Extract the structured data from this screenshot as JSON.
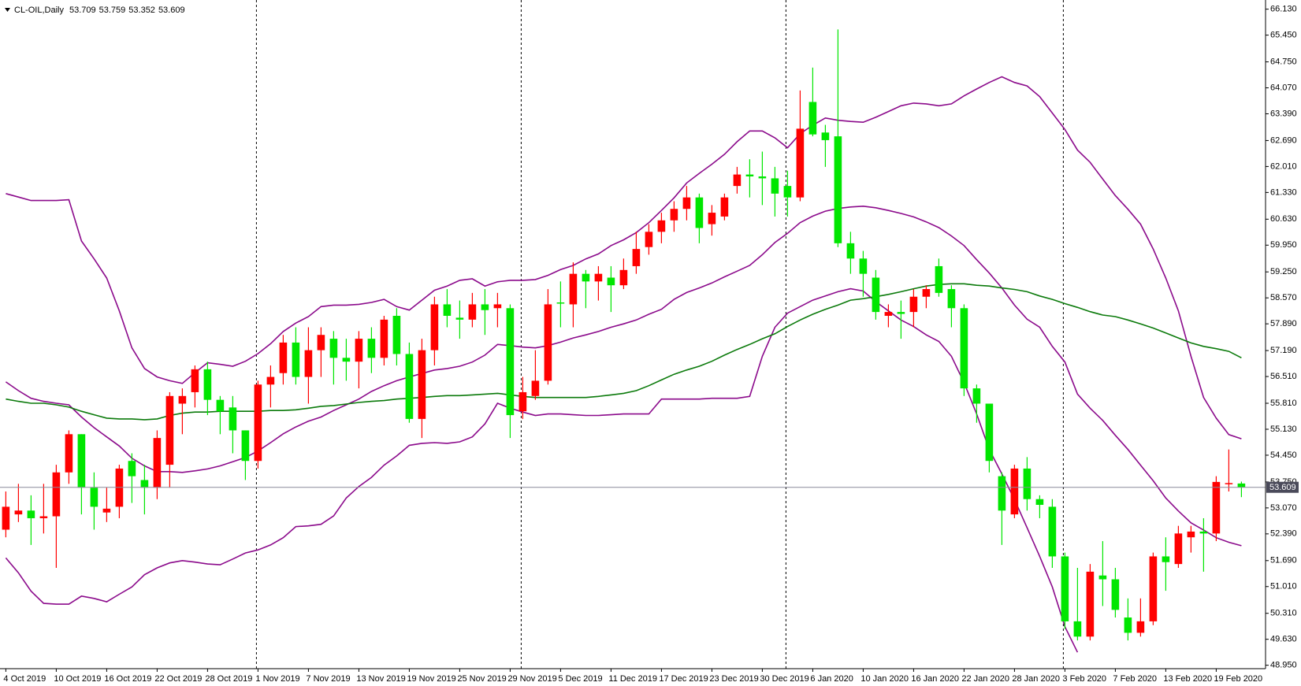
{
  "chart_data": {
    "type": "candlestick",
    "title": "CL-OIL,Daily",
    "categories": [
      "4 Oct 2019",
      null,
      null,
      null,
      "10 Oct 2019",
      null,
      null,
      null,
      "16 Oct 2019",
      null,
      null,
      null,
      "22 Oct 2019",
      null,
      null,
      null,
      "28 Oct 2019",
      null,
      null,
      null,
      "1 Nov 2019",
      null,
      null,
      null,
      "7 Nov 2019",
      null,
      null,
      null,
      "13 Nov 2019",
      null,
      null,
      null,
      "19 Nov 2019",
      null,
      null,
      null,
      "25 Nov 2019",
      null,
      null,
      null,
      "29 Nov 2019",
      null,
      null,
      null,
      "5 Dec 2019",
      null,
      null,
      null,
      "11 Dec 2019",
      null,
      null,
      null,
      "17 Dec 2019",
      null,
      null,
      null,
      "23 Dec 2019",
      null,
      null,
      null,
      "30 Dec 2019",
      null,
      null,
      null,
      "6 Jan 2020",
      null,
      null,
      null,
      "10 Jan 2020",
      null,
      null,
      null,
      "16 Jan 2020",
      null,
      null,
      null,
      "22 Jan 2020",
      null,
      null,
      null,
      "28 Jan 2020",
      null,
      null,
      null,
      "3 Feb 2020",
      null,
      null,
      null,
      "7 Feb 2020",
      null,
      null,
      null,
      "13 Feb 2020",
      null,
      null,
      null,
      "19 Feb 2020",
      null,
      null
    ],
    "open": [
      52.5,
      52.9,
      53.0,
      52.8,
      52.85,
      54.0,
      55.0,
      53.6,
      52.95,
      53.1,
      54.3,
      53.8,
      53.6,
      54.2,
      55.8,
      56.1,
      56.7,
      55.9,
      55.7,
      55.1,
      54.3,
      56.3,
      56.6,
      57.4,
      56.5,
      57.2,
      57.5,
      57.0,
      56.9,
      57.5,
      57.0,
      58.1,
      57.1,
      55.4,
      57.2,
      58.4,
      58.05,
      58.0,
      58.4,
      58.3,
      58.3,
      55.6,
      56.0,
      56.4,
      58.45,
      58.4,
      59.2,
      59.0,
      59.1,
      58.9,
      59.4,
      59.9,
      60.3,
      60.6,
      60.9,
      61.2,
      60.5,
      60.7,
      61.5,
      61.8,
      61.75,
      61.7,
      61.5,
      61.2,
      63.7,
      62.9,
      62.8,
      60.0,
      59.6,
      59.1,
      58.1,
      58.2,
      58.2,
      58.6,
      59.4,
      58.8,
      58.3,
      56.2,
      55.8,
      53.9,
      52.9,
      54.1,
      53.3,
      53.1,
      51.8,
      50.1,
      49.7,
      51.3,
      51.2,
      50.2,
      49.8,
      50.1,
      51.8,
      51.6,
      52.3,
      52.45,
      52.4,
      53.7,
      53.709
    ],
    "high": [
      53.5,
      53.7,
      53.4,
      53.7,
      54.2,
      55.1,
      55.0,
      54.0,
      53.6,
      54.2,
      54.5,
      54.2,
      55.1,
      56.1,
      56.2,
      56.8,
      56.9,
      56.0,
      56.0,
      55.1,
      56.4,
      56.8,
      57.6,
      57.8,
      57.8,
      57.8,
      57.7,
      57.5,
      57.7,
      57.8,
      58.1,
      58.3,
      57.4,
      57.5,
      58.6,
      58.8,
      58.5,
      58.7,
      58.8,
      58.7,
      58.4,
      56.5,
      57.2,
      58.8,
      59.0,
      59.5,
      59.3,
      59.4,
      59.4,
      59.6,
      60.3,
      60.5,
      60.8,
      61.1,
      61.5,
      61.3,
      61.0,
      61.3,
      62.0,
      62.2,
      62.4,
      62.0,
      61.9,
      64.0,
      64.6,
      63.1,
      65.6,
      60.3,
      59.8,
      59.3,
      58.4,
      58.5,
      58.8,
      58.9,
      59.6,
      58.9,
      58.4,
      56.3,
      55.8,
      54.0,
      54.2,
      54.4,
      53.4,
      53.3,
      51.9,
      51.5,
      51.6,
      52.2,
      51.5,
      50.7,
      50.7,
      51.9,
      52.3,
      52.6,
      52.6,
      52.8,
      53.9,
      54.6,
      53.759
    ],
    "low": [
      52.3,
      52.7,
      52.1,
      52.4,
      51.5,
      53.7,
      52.9,
      52.5,
      52.7,
      52.8,
      53.2,
      52.9,
      53.3,
      53.6,
      55.0,
      55.7,
      55.5,
      55.0,
      54.5,
      53.8,
      54.1,
      55.7,
      56.3,
      56.3,
      55.8,
      56.5,
      56.3,
      56.4,
      56.2,
      56.6,
      56.8,
      56.8,
      55.3,
      54.9,
      56.8,
      57.8,
      57.5,
      57.8,
      57.6,
      57.8,
      54.9,
      55.4,
      55.9,
      56.3,
      57.8,
      57.8,
      58.3,
      58.5,
      58.2,
      58.8,
      59.2,
      59.7,
      60.0,
      60.3,
      60.6,
      60.0,
      60.2,
      60.6,
      61.3,
      61.2,
      61.0,
      60.7,
      60.7,
      61.1,
      62.8,
      62.0,
      59.9,
      59.2,
      58.6,
      58.0,
      57.8,
      57.5,
      57.8,
      58.3,
      58.6,
      57.8,
      56.0,
      55.3,
      54.0,
      52.1,
      52.8,
      53.0,
      52.8,
      51.5,
      49.9,
      49.6,
      49.6,
      50.5,
      50.2,
      49.6,
      49.7,
      50.0,
      50.9,
      51.5,
      51.9,
      51.4,
      52.2,
      53.5,
      53.352
    ],
    "close": [
      53.1,
      53.0,
      52.8,
      52.85,
      54.0,
      55.0,
      53.6,
      53.1,
      53.05,
      54.1,
      53.9,
      53.6,
      54.9,
      56.0,
      56.0,
      56.7,
      55.9,
      55.6,
      55.1,
      54.3,
      56.3,
      56.5,
      57.4,
      56.5,
      57.2,
      57.6,
      57.0,
      56.9,
      57.5,
      57.0,
      58.0,
      57.1,
      55.4,
      57.2,
      58.4,
      58.1,
      58.0,
      58.4,
      58.25,
      58.4,
      55.5,
      56.1,
      56.4,
      58.4,
      58.43,
      59.2,
      59.0,
      59.2,
      58.9,
      59.3,
      59.85,
      60.3,
      60.6,
      60.9,
      61.2,
      60.4,
      60.8,
      61.2,
      61.8,
      61.75,
      61.7,
      61.3,
      61.2,
      63.0,
      62.85,
      62.7,
      60.0,
      59.6,
      59.2,
      58.2,
      58.2,
      58.15,
      58.6,
      58.8,
      58.7,
      58.3,
      56.2,
      55.8,
      54.3,
      53.0,
      54.1,
      53.3,
      53.15,
      51.8,
      50.1,
      49.7,
      51.4,
      51.2,
      50.4,
      49.8,
      50.1,
      51.8,
      51.65,
      52.4,
      52.45,
      52.4,
      53.75,
      53.72,
      53.609
    ],
    "up_color": "#ff0000",
    "down_color": "#00e600",
    "lines": [
      {
        "color": "#8b0a8b",
        "values": [
          61.3,
          61.21,
          61.12,
          61.12,
          61.12,
          61.14,
          60.06,
          59.59,
          59.09,
          58.23,
          57.26,
          56.72,
          56.5,
          56.4,
          56.33,
          56.61,
          56.87,
          56.83,
          56.78,
          56.91,
          57.11,
          57.37,
          57.69,
          57.91,
          58.08,
          58.34,
          58.38,
          58.38,
          58.4,
          58.45,
          58.53,
          58.34,
          58.25,
          58.51,
          58.77,
          58.88,
          59.03,
          59.07,
          58.88,
          58.99,
          59.03,
          59.03,
          59.05,
          59.16,
          59.31,
          59.42,
          59.59,
          59.72,
          59.94,
          60.09,
          60.28,
          60.54,
          60.86,
          61.19,
          61.58,
          61.83,
          62.07,
          62.33,
          62.66,
          62.94,
          62.94,
          62.76,
          62.5,
          62.87,
          63.09,
          63.28,
          63.22,
          63.19,
          63.17,
          63.3,
          63.45,
          63.6,
          63.67,
          63.65,
          63.6,
          63.65,
          63.86,
          64.04,
          64.21,
          64.36,
          64.21,
          64.12,
          63.84,
          63.41,
          62.98,
          62.44,
          62.12,
          61.68,
          61.25,
          60.89,
          60.5,
          59.85,
          59.09,
          58.23,
          57.04,
          55.96,
          55.42,
          54.99,
          54.88
        ]
      },
      {
        "color": "#8b0a8b",
        "values": [
          56.37,
          56.14,
          55.94,
          55.86,
          55.81,
          55.77,
          55.45,
          55.17,
          54.93,
          54.69,
          54.37,
          54.17,
          54.02,
          54.02,
          54.0,
          54.04,
          54.09,
          54.17,
          54.28,
          54.39,
          54.56,
          54.78,
          55.01,
          55.19,
          55.34,
          55.45,
          55.62,
          55.77,
          55.92,
          56.12,
          56.27,
          56.4,
          56.5,
          56.59,
          56.68,
          56.72,
          56.78,
          56.89,
          57.07,
          57.35,
          57.32,
          57.28,
          57.26,
          57.32,
          57.41,
          57.52,
          57.6,
          57.69,
          57.8,
          57.89,
          57.99,
          58.14,
          58.27,
          58.53,
          58.71,
          58.83,
          58.96,
          59.12,
          59.27,
          59.42,
          59.7,
          60.02,
          60.26,
          60.54,
          60.71,
          60.84,
          60.91,
          60.95,
          60.97,
          60.93,
          60.86,
          60.78,
          60.69,
          60.56,
          60.41,
          60.19,
          59.94,
          59.57,
          59.22,
          58.83,
          58.38,
          58.01,
          57.8,
          57.3,
          56.89,
          56.05,
          55.68,
          55.36,
          54.97,
          54.6,
          54.19,
          53.78,
          53.33,
          52.99,
          52.68,
          52.49,
          52.29,
          52.17,
          52.08
        ]
      },
      {
        "color": "#8b0a8b",
        "values": [
          51.76,
          51.37,
          50.89,
          50.57,
          50.55,
          50.55,
          50.76,
          50.7,
          50.61,
          50.81,
          51.0,
          51.32,
          51.5,
          51.63,
          51.69,
          51.65,
          51.6,
          51.58,
          51.73,
          51.89,
          51.97,
          52.1,
          52.29,
          52.58,
          52.6,
          52.64,
          52.86,
          53.33,
          53.63,
          53.87,
          54.19,
          54.43,
          54.71,
          54.76,
          54.78,
          54.76,
          54.8,
          54.93,
          55.27,
          55.81,
          55.68,
          55.58,
          55.49,
          55.53,
          55.53,
          55.51,
          55.49,
          55.49,
          55.51,
          55.53,
          55.53,
          55.53,
          55.92,
          55.92,
          55.92,
          55.92,
          55.94,
          55.94,
          55.94,
          55.99,
          57.04,
          57.8,
          58.17,
          58.34,
          58.51,
          58.62,
          58.73,
          58.81,
          58.75,
          58.47,
          58.23,
          57.99,
          57.82,
          57.6,
          57.43,
          57.04,
          56.35,
          55.53,
          54.6,
          53.96,
          53.29,
          52.55,
          51.8,
          51.0,
          49.96,
          49.29,
          null,
          null,
          null,
          null,
          null,
          null,
          null,
          null,
          null,
          null,
          null,
          null,
          null
        ]
      },
      {
        "color": "#0b7a0b",
        "values": [
          55.92,
          55.86,
          55.81,
          55.81,
          55.77,
          55.71,
          55.6,
          55.51,
          55.42,
          55.4,
          55.4,
          55.38,
          55.4,
          55.49,
          55.55,
          55.58,
          55.58,
          55.6,
          55.6,
          55.6,
          55.6,
          55.62,
          55.62,
          55.64,
          55.68,
          55.73,
          55.75,
          55.79,
          55.83,
          55.86,
          55.88,
          55.92,
          55.94,
          55.96,
          55.99,
          56.01,
          56.01,
          56.03,
          56.05,
          56.07,
          56.03,
          55.99,
          55.96,
          55.96,
          55.96,
          55.96,
          55.96,
          55.99,
          56.03,
          56.07,
          56.14,
          56.27,
          56.42,
          56.57,
          56.68,
          56.78,
          56.91,
          57.07,
          57.22,
          57.35,
          57.5,
          57.63,
          57.82,
          57.99,
          58.14,
          58.27,
          58.38,
          58.51,
          58.55,
          58.6,
          58.66,
          58.73,
          58.81,
          58.88,
          58.92,
          58.94,
          58.94,
          58.9,
          58.88,
          58.83,
          58.79,
          58.73,
          58.62,
          58.53,
          58.42,
          58.32,
          58.21,
          58.12,
          58.08,
          57.99,
          57.89,
          57.78,
          57.65,
          57.52,
          57.39,
          57.3,
          57.24,
          57.17,
          57.0
        ]
      }
    ],
    "ylim": [
      48.86,
      66.37
    ],
    "yticks": [
      {
        "value": 48.95,
        "label": "48.950"
      },
      {
        "value": 49.63,
        "label": "49.630"
      },
      {
        "value": 50.31,
        "label": "50.310"
      },
      {
        "value": 51.01,
        "label": "51.010"
      },
      {
        "value": 51.69,
        "label": "51.690"
      },
      {
        "value": 52.39,
        "label": "52.390"
      },
      {
        "value": 53.07,
        "label": "53.070"
      },
      {
        "value": 53.75,
        "label": "53.750"
      },
      {
        "value": 54.45,
        "label": "54.450"
      },
      {
        "value": 55.13,
        "label": "55.130"
      },
      {
        "value": 55.81,
        "label": "55.810"
      },
      {
        "value": 56.51,
        "label": "56.510"
      },
      {
        "value": 57.19,
        "label": "57.190"
      },
      {
        "value": 57.89,
        "label": "57.890"
      },
      {
        "value": 58.57,
        "label": "58.570"
      },
      {
        "value": 59.25,
        "label": "59.250"
      },
      {
        "value": 59.95,
        "label": "59.950"
      },
      {
        "value": 60.63,
        "label": "60.630"
      },
      {
        "value": 61.33,
        "label": "61.330"
      },
      {
        "value": 62.01,
        "label": "62.010"
      },
      {
        "value": 62.69,
        "label": "62.690"
      },
      {
        "value": 63.39,
        "label": "63.390"
      },
      {
        "value": 64.07,
        "label": "64.070"
      },
      {
        "value": 64.75,
        "label": "64.750"
      },
      {
        "value": 65.45,
        "label": "65.450"
      },
      {
        "value": 66.13,
        "label": "66.130"
      }
    ],
    "grid": false,
    "price_line": true
  }
}
